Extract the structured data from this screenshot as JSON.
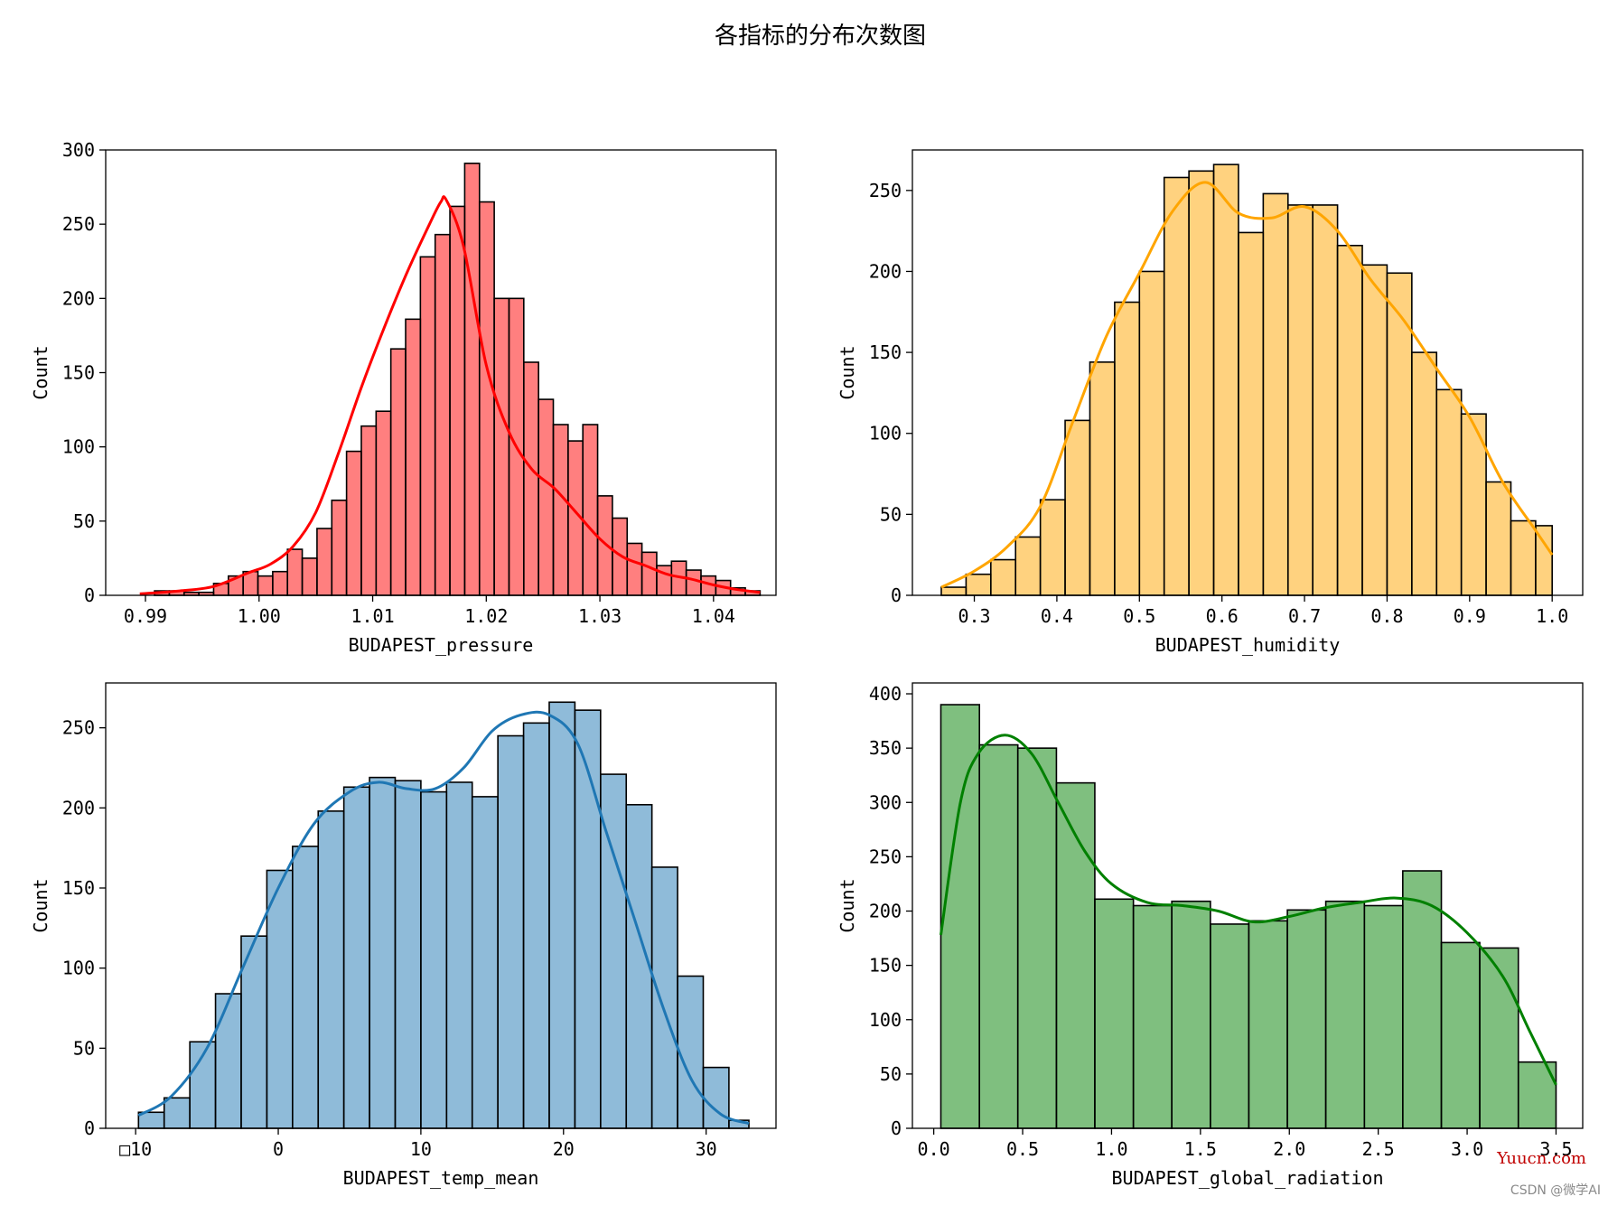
{
  "figure": {
    "suptitle": "各指标的分布次数图"
  },
  "watermark": {
    "site": "Yuucn.com",
    "credit": "CSDN @微学AI"
  },
  "chart_data": [
    {
      "type": "bar",
      "variant": "histogram-with-kde",
      "xlabel": "BUDAPEST_pressure",
      "ylabel": "Count",
      "xlim": [
        0.9865,
        1.0455
      ],
      "ylim": [
        0,
        300
      ],
      "xticks": [
        0.99,
        1.0,
        1.01,
        1.02,
        1.03,
        1.04
      ],
      "xtick_labels": [
        "0.99",
        "1.00",
        "1.01",
        "1.02",
        "1.03",
        "1.04"
      ],
      "yticks": [
        0,
        50,
        100,
        150,
        200,
        250,
        300
      ],
      "color": "#ff0000",
      "bin_edges": [
        0.9895,
        0.9908,
        0.9921,
        0.9934,
        0.9947,
        0.996,
        0.9973,
        0.9986,
        0.9999,
        1.0012,
        1.0025,
        1.0038,
        1.0051,
        1.0064,
        1.0077,
        1.009,
        1.0103,
        1.0116,
        1.0129,
        1.0142,
        1.0155,
        1.0168,
        1.0181,
        1.0194,
        1.0207,
        1.022,
        1.0233,
        1.0246,
        1.0259,
        1.0272,
        1.0285,
        1.0298,
        1.0311,
        1.0324,
        1.0337,
        1.035,
        1.0363,
        1.0376,
        1.0389,
        1.0402,
        1.0415,
        1.0428,
        1.0441
      ],
      "counts": [
        0,
        3,
        3,
        2,
        2,
        8,
        13,
        16,
        13,
        16,
        31,
        25,
        45,
        64,
        97,
        114,
        124,
        166,
        186,
        228,
        243,
        262,
        291,
        265,
        200,
        200,
        157,
        132,
        115,
        104,
        115,
        67,
        52,
        35,
        29,
        20,
        23,
        17,
        13,
        10,
        5,
        3
      ],
      "kde": {
        "x": [
          0.9895,
          0.993,
          0.996,
          0.999,
          1.001,
          1.003,
          1.005,
          1.007,
          1.009,
          1.011,
          1.013,
          1.015,
          1.016,
          1.0165,
          1.018,
          1.02,
          1.022,
          1.024,
          1.026,
          1.028,
          1.03,
          1.032,
          1.034,
          1.036,
          1.038,
          1.04,
          1.042,
          1.0441
        ],
        "y": [
          1,
          3,
          6,
          15,
          21,
          33,
          56,
          96,
          140,
          180,
          217,
          250,
          265,
          266,
          235,
          155,
          110,
          85,
          72,
          55,
          38,
          26,
          20,
          14,
          11,
          7,
          4,
          2
        ]
      }
    },
    {
      "type": "bar",
      "variant": "histogram-with-kde",
      "xlabel": "BUDAPEST_humidity",
      "ylabel": "Count",
      "xlim": [
        0.225,
        1.037
      ],
      "ylim": [
        0,
        275
      ],
      "xticks": [
        0.3,
        0.4,
        0.5,
        0.6,
        0.7,
        0.8,
        0.9,
        1.0
      ],
      "xtick_labels": [
        "0.3",
        "0.4",
        "0.5",
        "0.6",
        "0.7",
        "0.8",
        "0.9",
        "1.0"
      ],
      "yticks": [
        0,
        50,
        100,
        150,
        200,
        250
      ],
      "color": "#ffa500",
      "bin_edges": [
        0.26,
        0.29,
        0.32,
        0.35,
        0.38,
        0.41,
        0.44,
        0.47,
        0.5,
        0.53,
        0.56,
        0.59,
        0.62,
        0.65,
        0.68,
        0.71,
        0.74,
        0.77,
        0.8,
        0.83,
        0.86,
        0.89,
        0.92,
        0.95,
        0.98,
        1.0
      ],
      "counts": [
        5,
        13,
        22,
        36,
        59,
        108,
        144,
        181,
        200,
        258,
        262,
        266,
        224,
        248,
        241,
        241,
        216,
        204,
        199,
        150,
        127,
        112,
        70,
        46,
        43
      ],
      "kde": {
        "x": [
          0.26,
          0.3,
          0.34,
          0.38,
          0.42,
          0.46,
          0.5,
          0.54,
          0.58,
          0.62,
          0.66,
          0.7,
          0.74,
          0.78,
          0.82,
          0.86,
          0.9,
          0.94,
          0.98,
          1.0
        ],
        "y": [
          5,
          15,
          30,
          55,
          108,
          160,
          199,
          237,
          255,
          236,
          233,
          240,
          225,
          195,
          170,
          140,
          110,
          70,
          40,
          25
        ]
      }
    },
    {
      "type": "bar",
      "variant": "histogram-with-kde",
      "xlabel": "BUDAPEST_temp_mean",
      "ylabel": "Count",
      "xlim": [
        -12.1,
        34.9
      ],
      "ylim": [
        0,
        278
      ],
      "xticks": [
        -10,
        0,
        10,
        20,
        30
      ],
      "xtick_labels": [
        "□10",
        "0",
        "10",
        "20",
        "30"
      ],
      "yticks": [
        0,
        50,
        100,
        150,
        200,
        250
      ],
      "color": "#1f77b4",
      "bin_edges": [
        -9.8,
        -8.0,
        -6.2,
        -4.4,
        -2.6,
        -0.8,
        1.0,
        2.8,
        4.6,
        6.4,
        8.2,
        10.0,
        11.8,
        13.6,
        15.4,
        17.2,
        19.0,
        20.8,
        22.6,
        24.4,
        26.2,
        28.0,
        29.8,
        31.6,
        33.0
      ],
      "counts": [
        10,
        19,
        54,
        84,
        120,
        161,
        176,
        198,
        213,
        219,
        217,
        210,
        216,
        207,
        245,
        253,
        266,
        261,
        221,
        202,
        163,
        95,
        38,
        5
      ],
      "kde": {
        "x": [
          -9.8,
          -7.5,
          -5.0,
          -2.5,
          0.0,
          2.5,
          5.0,
          7.0,
          9.0,
          11.0,
          13.0,
          15.0,
          17.0,
          19.0,
          21.0,
          23.0,
          25.0,
          27.0,
          29.0,
          31.0,
          33.0
        ],
        "y": [
          8,
          20,
          50,
          100,
          150,
          190,
          210,
          216,
          212,
          212,
          225,
          248,
          258,
          258,
          240,
          185,
          130,
          75,
          30,
          9,
          3
        ]
      }
    },
    {
      "type": "bar",
      "variant": "histogram-with-kde",
      "xlabel": "BUDAPEST_global_radiation",
      "ylabel": "Count",
      "xlim": [
        -0.12,
        3.65
      ],
      "ylim": [
        0,
        410
      ],
      "xticks": [
        0.0,
        0.5,
        1.0,
        1.5,
        2.0,
        2.5,
        3.0,
        3.5
      ],
      "xtick_labels": [
        "0.0",
        "0.5",
        "1.0",
        "1.5",
        "2.0",
        "2.5",
        "3.0",
        "3.5"
      ],
      "yticks": [
        0,
        50,
        100,
        150,
        200,
        250,
        300,
        350,
        400
      ],
      "color": "#008000",
      "bin_edges": [
        0.04,
        0.257,
        0.473,
        0.69,
        0.906,
        1.123,
        1.339,
        1.556,
        1.772,
        1.989,
        2.205,
        2.422,
        2.638,
        2.855,
        3.071,
        3.288,
        3.5
      ],
      "counts": [
        390,
        353,
        350,
        318,
        211,
        205,
        209,
        188,
        191,
        201,
        209,
        205,
        237,
        171,
        166,
        61
      ],
      "kde": {
        "x": [
          0.04,
          0.15,
          0.25,
          0.4,
          0.55,
          0.7,
          0.85,
          1.0,
          1.2,
          1.4,
          1.6,
          1.8,
          2.0,
          2.2,
          2.4,
          2.6,
          2.8,
          3.0,
          3.2,
          3.35,
          3.5
        ],
        "y": [
          178,
          300,
          345,
          362,
          345,
          300,
          255,
          225,
          208,
          205,
          200,
          190,
          195,
          203,
          208,
          212,
          205,
          180,
          140,
          90,
          40
        ]
      }
    }
  ]
}
